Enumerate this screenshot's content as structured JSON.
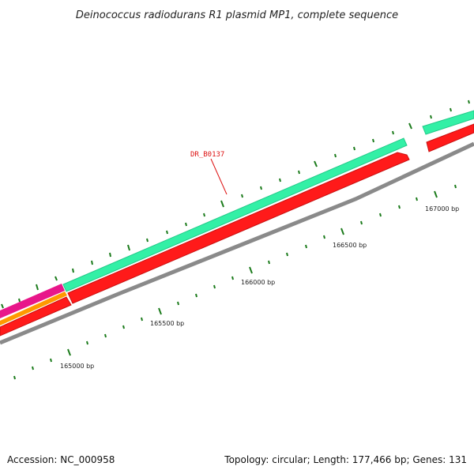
{
  "title": "Deinococcus radiodurans R1 plasmid MP1, complete sequence",
  "gene_label": "DR_B0137",
  "tick_labels": [
    "165000 bp",
    "165500 bp",
    "166000 bp",
    "166500 bp",
    "167000 bp"
  ],
  "footer": {
    "accession": "Accession: NC_000958",
    "summary": "Topology: circular; Length: 177,466 bp; Genes: 131"
  },
  "colors": {
    "backbone": "#8a8a8a",
    "reverse_gene": "#ff1a1a",
    "forward_gene": "#33f0a6",
    "orange_gene": "#ff9900",
    "magenta_gene": "#e8168a",
    "tick": "#1a7a1a",
    "gene_label": "#dd1111"
  }
}
